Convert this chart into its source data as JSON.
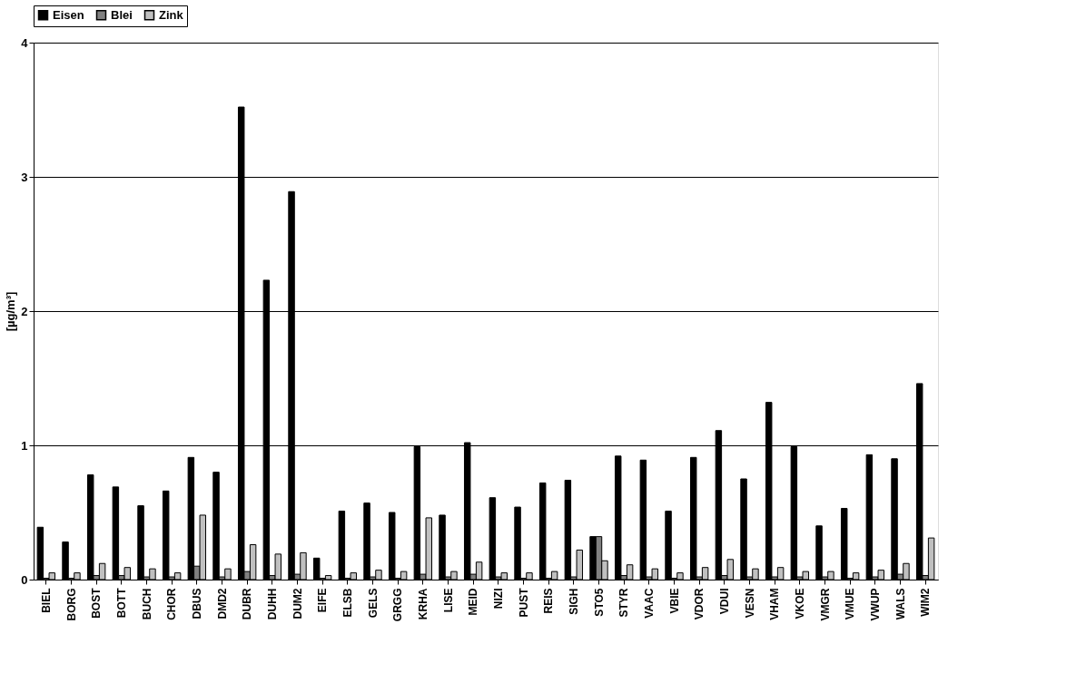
{
  "chart_data": {
    "type": "bar",
    "ylabel": "[µg/m³]",
    "categories": [
      "BIEL",
      "BORG",
      "BOST",
      "BOTT",
      "BUCH",
      "CHOR",
      "DBUS",
      "DMD2",
      "DUBR",
      "DUHH",
      "DUM2",
      "EIFE",
      "ELSB",
      "GELS",
      "GRGG",
      "KRHA",
      "LISE",
      "MEID",
      "NIZI",
      "PUST",
      "REIS",
      "SIGH",
      "STO5",
      "STYR",
      "VAAC",
      "VBIE",
      "VDOR",
      "VDUI",
      "VESN",
      "VHAM",
      "VKOE",
      "VMGR",
      "VMUE",
      "VWUP",
      "WALS",
      "WIM2"
    ],
    "series": [
      {
        "name": "Eisen",
        "color": "#000000",
        "values": [
          0.39,
          0.28,
          0.78,
          0.69,
          0.55,
          0.66,
          0.91,
          0.8,
          3.52,
          2.23,
          2.89,
          0.16,
          0.51,
          0.57,
          0.5,
          0.99,
          0.48,
          1.02,
          0.61,
          0.54,
          0.72,
          0.74,
          0.32,
          0.92,
          0.89,
          0.51,
          0.91,
          1.11,
          0.75,
          1.32,
          0.99,
          0.4,
          0.53,
          0.93,
          0.9,
          1.46
        ]
      },
      {
        "name": "Blei",
        "color": "#808080",
        "values": [
          0.01,
          0.01,
          0.03,
          0.03,
          0.02,
          0.02,
          0.1,
          0.02,
          0.06,
          0.03,
          0.04,
          0.01,
          0.01,
          0.02,
          0.01,
          0.04,
          0.02,
          0.04,
          0.02,
          0.01,
          0.01,
          0.02,
          0.32,
          0.03,
          0.02,
          0.01,
          0.02,
          0.03,
          0.02,
          0.02,
          0.02,
          0.02,
          0.01,
          0.02,
          0.04,
          0.03
        ]
      },
      {
        "name": "Zink",
        "color": "#c0c0c0",
        "values": [
          0.05,
          0.05,
          0.12,
          0.09,
          0.08,
          0.05,
          0.48,
          0.08,
          0.26,
          0.19,
          0.2,
          0.03,
          0.05,
          0.07,
          0.06,
          0.46,
          0.06,
          0.13,
          0.05,
          0.05,
          0.06,
          0.22,
          0.14,
          0.11,
          0.08,
          0.05,
          0.09,
          0.15,
          0.08,
          0.09,
          0.06,
          0.06,
          0.05,
          0.07,
          0.12,
          0.31
        ]
      }
    ],
    "ylim": [
      0,
      4
    ],
    "yticks": [
      0,
      1,
      2,
      3,
      4
    ],
    "grid": "y",
    "legend": "top"
  }
}
